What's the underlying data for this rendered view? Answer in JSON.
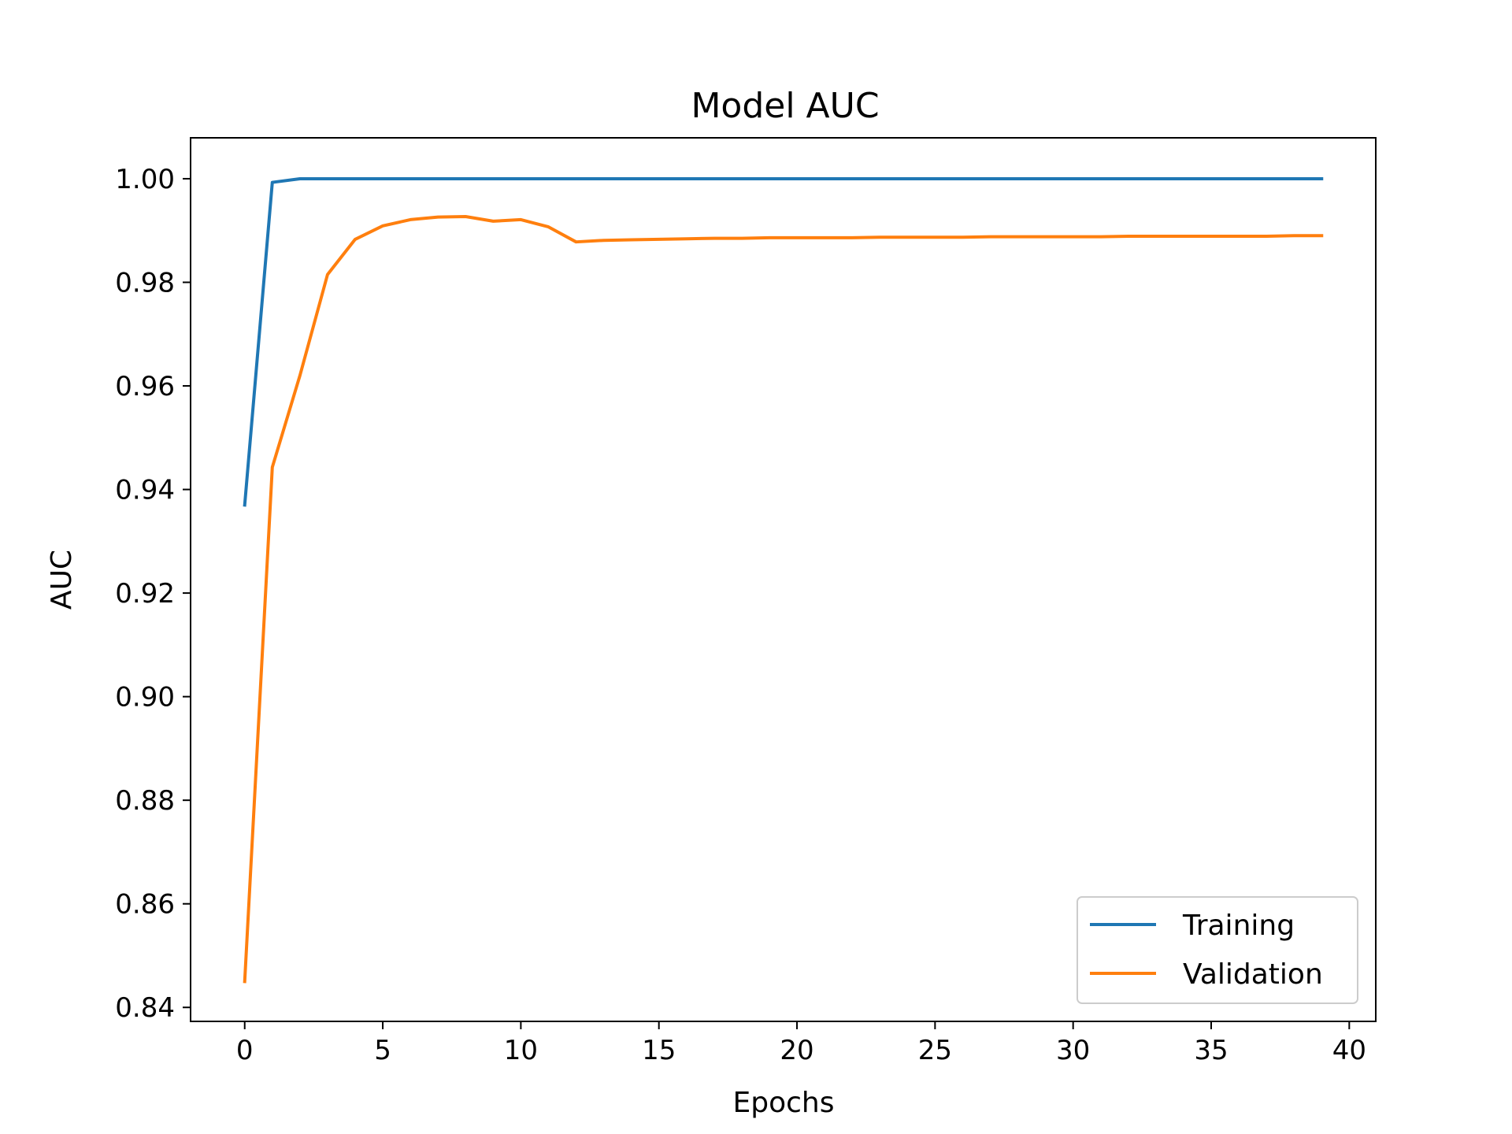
{
  "chart_data": {
    "type": "line",
    "title": "Model AUC",
    "xlabel": "Epochs",
    "ylabel": "AUC",
    "xlim": [
      -1.96,
      40.96
    ],
    "ylim": [
      0.8373,
      1.0079
    ],
    "x_ticks": [
      0,
      5,
      10,
      15,
      20,
      25,
      30,
      35,
      40
    ],
    "x_tick_labels": [
      "0",
      "5",
      "10",
      "15",
      "20",
      "25",
      "30",
      "35",
      "40"
    ],
    "y_ticks": [
      0.84,
      0.86,
      0.88,
      0.9,
      0.92,
      0.94,
      0.96,
      0.98,
      1.0
    ],
    "y_tick_labels": [
      "0.84",
      "0.86",
      "0.88",
      "0.90",
      "0.92",
      "0.94",
      "0.96",
      "0.98",
      "1.00"
    ],
    "grid": false,
    "legend_position": "lower-right",
    "x": [
      0,
      1,
      2,
      3,
      4,
      5,
      6,
      7,
      8,
      9,
      10,
      11,
      12,
      13,
      14,
      15,
      16,
      17,
      18,
      19,
      20,
      21,
      22,
      23,
      24,
      25,
      26,
      27,
      28,
      29,
      30,
      31,
      32,
      33,
      34,
      35,
      36,
      37,
      38,
      39
    ],
    "series": [
      {
        "name": "Training",
        "color": "#1f77b4",
        "values": [
          0.937,
          0.9993,
          1.0,
          1.0,
          1.0,
          1.0,
          1.0,
          1.0,
          1.0,
          1.0,
          1.0,
          1.0,
          1.0,
          1.0,
          1.0,
          1.0,
          1.0,
          1.0,
          1.0,
          1.0,
          1.0,
          1.0,
          1.0,
          1.0,
          1.0,
          1.0,
          1.0,
          1.0,
          1.0,
          1.0,
          1.0,
          1.0,
          1.0,
          1.0,
          1.0,
          1.0,
          1.0,
          1.0,
          1.0,
          1.0
        ]
      },
      {
        "name": "Validation",
        "color": "#ff7f0e",
        "values": [
          0.845,
          0.9443,
          0.962,
          0.9815,
          0.9883,
          0.9909,
          0.9921,
          0.9926,
          0.9927,
          0.9918,
          0.9921,
          0.9907,
          0.9878,
          0.9881,
          0.9882,
          0.9883,
          0.9884,
          0.9885,
          0.9885,
          0.9886,
          0.9886,
          0.9886,
          0.9886,
          0.9887,
          0.9887,
          0.9887,
          0.9887,
          0.9888,
          0.9888,
          0.9888,
          0.9888,
          0.9888,
          0.9889,
          0.9889,
          0.9889,
          0.9889,
          0.9889,
          0.9889,
          0.989,
          0.989
        ]
      }
    ]
  }
}
